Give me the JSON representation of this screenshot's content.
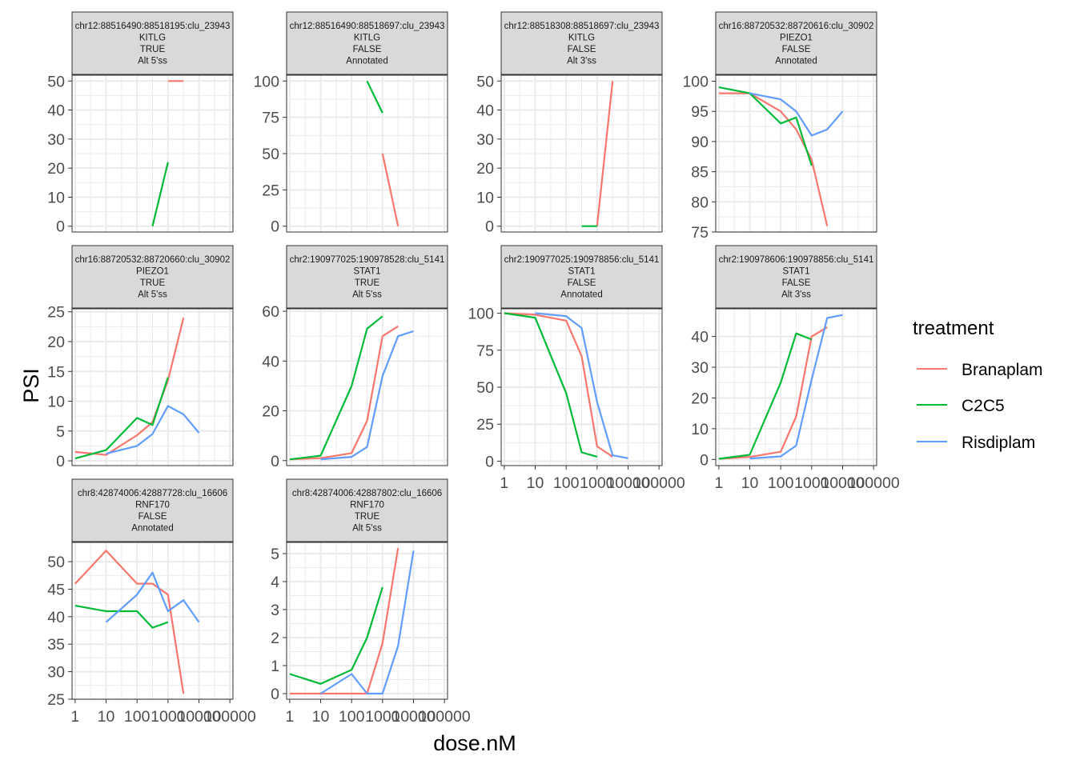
{
  "colors": {
    "Branaplam": "#F8766D",
    "C2C5": "#00BA38",
    "Risdiplam": "#619CFF",
    "strip_bg": "#D9D9D9",
    "grid": "#EBEBEB",
    "panel_border": "#333333",
    "axis_text": "#4D4D4D"
  },
  "chart_data": {
    "type": "line",
    "xlabel": "dose.nM",
    "ylabel": "PSI",
    "x_scale": "log10",
    "xlim": [
      1,
      100000
    ],
    "x_ticks": [
      1,
      10,
      100,
      1000,
      10000,
      100000
    ],
    "x_tick_labels": [
      "1",
      "10",
      "100",
      "1000",
      "10000",
      "100000"
    ],
    "legend": {
      "title": "treatment",
      "position": "right",
      "entries": [
        "Branaplam",
        "C2C5",
        "Risdiplam"
      ]
    },
    "panels": [
      {
        "strip": [
          "chr12:88516490:88518195:clu_23943",
          "KITLG",
          "TRUE",
          "Alt 5'ss"
        ],
        "ylim": [
          -2,
          52
        ],
        "y_ticks": [
          0,
          10,
          20,
          30,
          40,
          50
        ],
        "series": [
          {
            "name": "Branaplam",
            "x": [
              1000,
              3162
            ],
            "y": [
              50,
              50
            ]
          },
          {
            "name": "C2C5",
            "x": [
              316,
              1000
            ],
            "y": [
              0,
              22
            ]
          },
          {
            "name": "Risdiplam",
            "x": [],
            "y": []
          }
        ]
      },
      {
        "strip": [
          "chr12:88516490:88518697:clu_23943",
          "KITLG",
          "FALSE",
          "Annotated"
        ],
        "ylim": [
          -4,
          104
        ],
        "y_ticks": [
          0,
          25,
          50,
          75,
          100
        ],
        "series": [
          {
            "name": "Branaplam",
            "x": [
              1000,
              3162
            ],
            "y": [
              50,
              0
            ]
          },
          {
            "name": "C2C5",
            "x": [
              316,
              1000
            ],
            "y": [
              100,
              78
            ]
          },
          {
            "name": "Risdiplam",
            "x": [],
            "y": []
          }
        ]
      },
      {
        "strip": [
          "chr12:88518308:88518697:clu_23943",
          "KITLG",
          "FALSE",
          "Alt 3'ss"
        ],
        "ylim": [
          -2,
          52
        ],
        "y_ticks": [
          0,
          10,
          20,
          30,
          40,
          50
        ],
        "series": [
          {
            "name": "Branaplam",
            "x": [
              1000,
              3162
            ],
            "y": [
              0,
              50
            ]
          },
          {
            "name": "C2C5",
            "x": [
              316,
              1000
            ],
            "y": [
              0,
              0
            ]
          },
          {
            "name": "Risdiplam",
            "x": [],
            "y": []
          }
        ]
      },
      {
        "strip": [
          "chr16:88720532:88720616:clu_30902",
          "PIEZO1",
          "FALSE",
          "Annotated"
        ],
        "ylim": [
          75,
          101
        ],
        "y_ticks": [
          75,
          80,
          85,
          90,
          95,
          100
        ],
        "series": [
          {
            "name": "Branaplam",
            "x": [
              1,
              10,
              100,
              316,
              1000,
              3162
            ],
            "y": [
              98,
              98,
              95,
              92,
              87,
              76
            ]
          },
          {
            "name": "C2C5",
            "x": [
              1,
              10,
              100,
              316,
              1000
            ],
            "y": [
              99,
              98,
              93,
              94,
              86
            ]
          },
          {
            "name": "Risdiplam",
            "x": [
              10,
              100,
              316,
              1000,
              3162,
              10000
            ],
            "y": [
              98,
              97,
              95,
              91,
              92,
              95
            ]
          }
        ]
      },
      {
        "strip": [
          "chr16:88720532:88720660:clu_30902",
          "PIEZO1",
          "TRUE",
          "Alt 5'ss"
        ],
        "ylim": [
          -0.8,
          25.5
        ],
        "y_ticks": [
          0,
          5,
          10,
          15,
          20,
          25
        ],
        "series": [
          {
            "name": "Branaplam",
            "x": [
              1,
              10,
              100,
              316,
              1000,
              3162
            ],
            "y": [
              1.5,
              1.0,
              4.3,
              6.5,
              13.5,
              24
            ]
          },
          {
            "name": "C2C5",
            "x": [
              1,
              10,
              100,
              316,
              1000
            ],
            "y": [
              0.4,
              1.8,
              7.2,
              6.0,
              14
            ]
          },
          {
            "name": "Risdiplam",
            "x": [
              10,
              100,
              316,
              1000,
              3162,
              10000
            ],
            "y": [
              1.2,
              2.5,
              4.5,
              9.2,
              7.8,
              4.7
            ]
          }
        ]
      },
      {
        "strip": [
          "chr2:190977025:190978528:clu_5141",
          "STAT1",
          "TRUE",
          "Alt 5'ss"
        ],
        "ylim": [
          -2,
          61
        ],
        "y_ticks": [
          0,
          20,
          40,
          60
        ],
        "series": [
          {
            "name": "Branaplam",
            "x": [
              1,
              10,
              100,
              316,
              1000,
              3162
            ],
            "y": [
              0.5,
              1.0,
              3.0,
              16,
              50,
              54
            ]
          },
          {
            "name": "C2C5",
            "x": [
              1,
              10,
              100,
              316,
              1000
            ],
            "y": [
              0.5,
              2.0,
              30,
              53,
              58
            ]
          },
          {
            "name": "Risdiplam",
            "x": [
              10,
              100,
              316,
              1000,
              3162,
              10000
            ],
            "y": [
              0.5,
              1.5,
              5.5,
              34,
              50,
              52
            ]
          }
        ]
      },
      {
        "strip": [
          "chr2:190977025:190978856:clu_5141",
          "STAT1",
          "FALSE",
          "Annotated"
        ],
        "ylim": [
          -3,
          103
        ],
        "y_ticks": [
          0,
          25,
          50,
          75,
          100
        ],
        "series": [
          {
            "name": "Branaplam",
            "x": [
              1,
              10,
              100,
              316,
              1000,
              3162
            ],
            "y": [
              100,
              99,
              95,
              71,
              10,
              3
            ]
          },
          {
            "name": "C2C5",
            "x": [
              1,
              10,
              100,
              316,
              1000
            ],
            "y": [
              100,
              97,
              46,
              6,
              3
            ]
          },
          {
            "name": "Risdiplam",
            "x": [
              10,
              100,
              316,
              1000,
              3162,
              10000
            ],
            "y": [
              100,
              98,
              90,
              40,
              4,
              2
            ]
          }
        ]
      },
      {
        "strip": [
          "chr2:190978606:190978856:clu_5141",
          "STAT1",
          "FALSE",
          "Alt 3'ss"
        ],
        "ylim": [
          -2,
          49
        ],
        "y_ticks": [
          0,
          10,
          20,
          30,
          40
        ],
        "series": [
          {
            "name": "Branaplam",
            "x": [
              1,
              10,
              100,
              316,
              1000,
              3162
            ],
            "y": [
              0.2,
              0.8,
              2.5,
              14,
              40,
              43
            ]
          },
          {
            "name": "C2C5",
            "x": [
              1,
              10,
              100,
              316,
              1000
            ],
            "y": [
              0.2,
              1.5,
              25,
              41,
              39
            ]
          },
          {
            "name": "Risdiplam",
            "x": [
              10,
              100,
              316,
              1000,
              3162,
              10000
            ],
            "y": [
              0.3,
              1.0,
              4.5,
              26,
              46,
              47
            ]
          }
        ]
      },
      {
        "strip": [
          "chr8:42874006:42887728:clu_16606",
          "RNF170",
          "FALSE",
          "Annotated"
        ],
        "ylim": [
          25,
          53.5
        ],
        "y_ticks": [
          25,
          30,
          35,
          40,
          45,
          50
        ],
        "series": [
          {
            "name": "Branaplam",
            "x": [
              1,
              10,
              100,
              316,
              1000,
              3162
            ],
            "y": [
              46,
              52,
              46,
              46,
              44,
              26
            ]
          },
          {
            "name": "C2C5",
            "x": [
              1,
              10,
              100,
              316,
              1000
            ],
            "y": [
              42,
              41,
              41,
              38,
              39
            ]
          },
          {
            "name": "Risdiplam",
            "x": [
              10,
              100,
              316,
              1000,
              3162,
              10000
            ],
            "y": [
              39,
              44,
              48,
              41,
              43,
              39
            ]
          }
        ]
      },
      {
        "strip": [
          "chr8:42874006:42887802:clu_16606",
          "RNF170",
          "TRUE",
          "Alt 5'ss"
        ],
        "ylim": [
          -0.2,
          5.4
        ],
        "y_ticks": [
          0,
          1,
          2,
          3,
          4,
          5
        ],
        "series": [
          {
            "name": "Branaplam",
            "x": [
              1,
              10,
              100,
              316,
              1000,
              3162
            ],
            "y": [
              0,
              0,
              0,
              0,
              1.8,
              5.2
            ]
          },
          {
            "name": "C2C5",
            "x": [
              1,
              10,
              100,
              316,
              1000
            ],
            "y": [
              0.7,
              0.35,
              0.85,
              2.0,
              3.8
            ]
          },
          {
            "name": "Risdiplam",
            "x": [
              10,
              100,
              316,
              1000,
              3162,
              10000
            ],
            "y": [
              0,
              0.7,
              0,
              0,
              1.7,
              5.1
            ]
          }
        ]
      }
    ]
  }
}
